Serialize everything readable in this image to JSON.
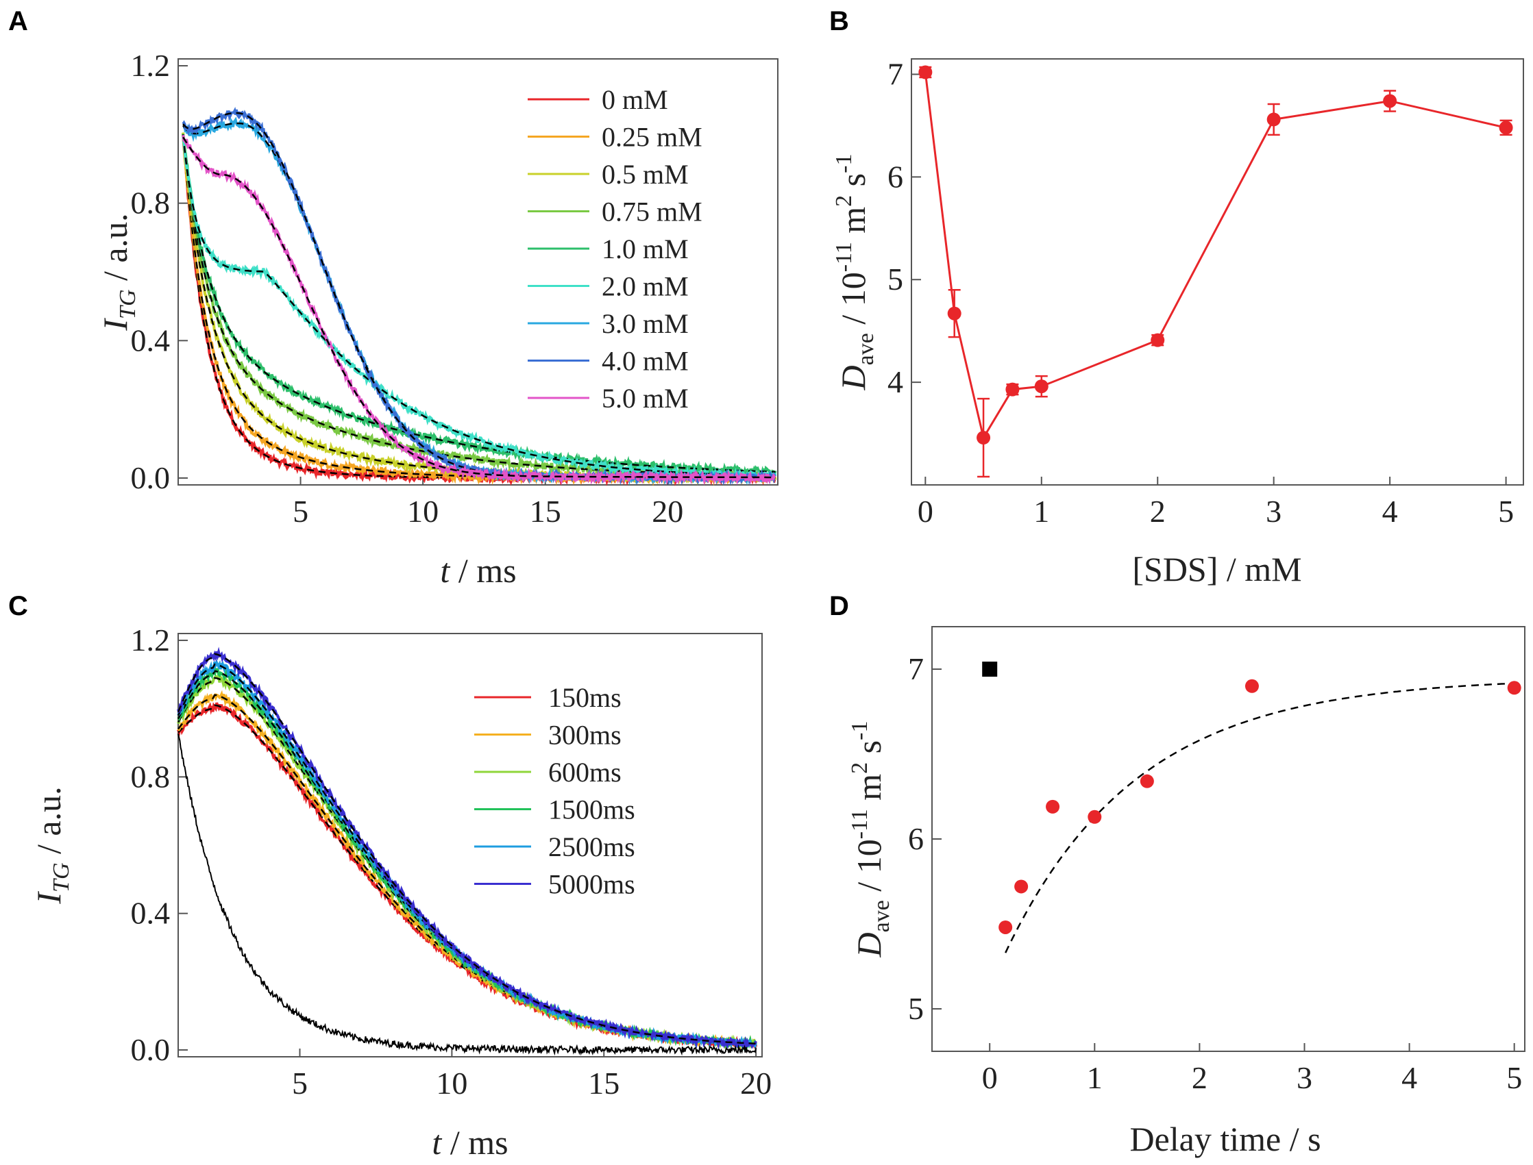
{
  "panels": {
    "A": {
      "label": "A"
    },
    "B": {
      "label": "B"
    },
    "C": {
      "label": "C"
    },
    "D": {
      "label": "D"
    }
  },
  "chart_data": [
    {
      "id": "A",
      "type": "line",
      "xlabel_italic": "t",
      "xlabel_rest": " / ms",
      "ylabel_main": "I",
      "ylabel_sub": "TG",
      "ylabel_rest": " / a.u.",
      "xlim": [
        0,
        24.5
      ],
      "ylim": [
        -0.02,
        1.22
      ],
      "xticks": [
        5,
        10,
        15,
        20
      ],
      "yticks": [
        0.0,
        0.4,
        0.8,
        1.2
      ],
      "ytick_labels": [
        "0.0",
        "0.4",
        "0.8",
        "1.2"
      ],
      "series": [
        {
          "name": "0 mM",
          "color": "#e8262a",
          "t0": 0.2,
          "y0": 1.0,
          "fast_frac": 0.78,
          "tau_fast": 0.9,
          "tau_slow": 2.2,
          "bump_amp": 0.0,
          "bump_center": 3.0,
          "bump_width": 2.0
        },
        {
          "name": "0.25 mM",
          "color": "#f5a623",
          "t0": 0.2,
          "y0": 1.0,
          "fast_frac": 0.72,
          "tau_fast": 0.9,
          "tau_slow": 3.0,
          "bump_amp": 0.0,
          "bump_center": 3.0,
          "bump_width": 2.0
        },
        {
          "name": "0.5 mM",
          "color": "#c9d12a",
          "t0": 0.2,
          "y0": 1.0,
          "fast_frac": 0.66,
          "tau_fast": 1.0,
          "tau_slow": 4.2,
          "bump_amp": 0.0,
          "bump_center": 3.0,
          "bump_width": 2.0
        },
        {
          "name": "0.75 mM",
          "color": "#7ac943",
          "t0": 0.2,
          "y0": 1.0,
          "fast_frac": 0.6,
          "tau_fast": 1.0,
          "tau_slow": 6.0,
          "bump_amp": 0.0,
          "bump_center": 3.0,
          "bump_width": 2.0
        },
        {
          "name": "1.0 mM",
          "color": "#2dbf6b",
          "t0": 0.2,
          "y0": 1.0,
          "fast_frac": 0.55,
          "tau_fast": 1.0,
          "tau_slow": 7.5,
          "bump_amp": 0.0,
          "bump_center": 3.0,
          "bump_width": 2.0
        },
        {
          "name": "2.0 mM",
          "color": "#3fe0c8",
          "t0": 0.2,
          "y0": 1.0,
          "fast_frac": 0.0,
          "tau_fast": 1.0,
          "tau_slow": 7.0,
          "bump_amp": 0.0,
          "bump_center": 3.0,
          "bump_width": 2.0,
          "custom": "twostep"
        },
        {
          "name": "3.0 mM",
          "color": "#29a8e0",
          "t0": 0.2,
          "y0": 0.93,
          "fast_frac": 0.0,
          "tau_fast": 1.0,
          "tau_slow": 5.0,
          "bump_amp": 1.02,
          "bump_center": 2.5,
          "bump_width": 2.2,
          "custom": "bump"
        },
        {
          "name": "4.0 mM",
          "color": "#3b6fd4",
          "t0": 0.2,
          "y0": 0.93,
          "fast_frac": 0.0,
          "tau_fast": 1.0,
          "tau_slow": 5.0,
          "bump_amp": 1.05,
          "bump_center": 2.4,
          "bump_width": 2.2,
          "custom": "bump"
        },
        {
          "name": "5.0 mM",
          "color": "#e354c8",
          "t0": 0.2,
          "y0": 1.0,
          "fast_frac": 0.0,
          "tau_fast": 1.0,
          "tau_slow": 4.5,
          "bump_amp": 0.87,
          "bump_center": 1.8,
          "bump_width": 2.3,
          "custom": "bump"
        }
      ],
      "fit_style": "black dashed"
    },
    {
      "id": "B",
      "type": "line",
      "xlabel": "[SDS] / mM",
      "ylabel_main": "D",
      "ylabel_sub": "ave",
      "ylabel_rest": " / 10",
      "ylabel_exp1": "-11",
      "ylabel_unit1": " m",
      "ylabel_exp2": "2",
      "ylabel_unit2": " s",
      "ylabel_exp3": "-1",
      "xlim": [
        -0.12,
        5.15
      ],
      "ylim": [
        3.0,
        7.15
      ],
      "xticks": [
        0,
        1,
        2,
        3,
        4,
        5
      ],
      "yticks": [
        4,
        5,
        6,
        7
      ],
      "color": "#e8262a",
      "x": [
        0,
        0.25,
        0.5,
        0.75,
        1,
        2,
        3,
        4,
        5
      ],
      "y": [
        7.02,
        4.67,
        3.46,
        3.93,
        3.96,
        4.41,
        6.56,
        6.74,
        6.48
      ],
      "err": [
        0.05,
        0.23,
        0.38,
        0.05,
        0.1,
        0.05,
        0.15,
        0.1,
        0.07
      ]
    },
    {
      "id": "C",
      "type": "line",
      "xlabel_italic": "t",
      "xlabel_rest": " / ms",
      "ylabel_main": "I",
      "ylabel_sub": "TG",
      "ylabel_rest": " / a.u.",
      "xlim": [
        1.0,
        20.2
      ],
      "ylim": [
        -0.02,
        1.22
      ],
      "xticks": [
        5,
        10,
        15,
        20
      ],
      "yticks": [
        0.0,
        0.4,
        0.8,
        1.2
      ],
      "ytick_labels": [
        "0.0",
        "0.4",
        "0.8",
        "1.2"
      ],
      "series": [
        {
          "name": "150ms",
          "color": "#e8262a",
          "y0": 0.93,
          "peak": 1.0
        },
        {
          "name": "300ms",
          "color": "#f5b021",
          "y0": 0.94,
          "peak": 1.03
        },
        {
          "name": "600ms",
          "color": "#8fd63a",
          "y0": 0.96,
          "peak": 1.08
        },
        {
          "name": "1500ms",
          "color": "#22c25a",
          "y0": 0.97,
          "peak": 1.1
        },
        {
          "name": "2500ms",
          "color": "#1e9de0",
          "y0": 0.98,
          "peak": 1.12
        },
        {
          "name": "5000ms",
          "color": "#3a2fd0",
          "y0": 0.99,
          "peak": 1.15
        }
      ],
      "reference_trace": {
        "color": "#000000",
        "y0": 0.93,
        "tau": 1.8
      }
    },
    {
      "id": "D",
      "type": "scatter",
      "xlabel": "Delay time / s",
      "ylabel_main": "D",
      "ylabel_sub": "ave",
      "ylabel_rest": " / 10",
      "ylabel_exp1": "-11",
      "ylabel_unit1": " m",
      "ylabel_exp2": "2",
      "ylabel_unit2": " s",
      "ylabel_exp3": "-1",
      "xlim": [
        -0.55,
        5.1
      ],
      "ylim": [
        4.75,
        7.25
      ],
      "xticks": [
        0,
        1,
        2,
        3,
        4,
        5
      ],
      "yticks": [
        5,
        6,
        7
      ],
      "reference_point": {
        "x": 0,
        "y": 7.0,
        "color": "#000000",
        "marker": "square"
      },
      "points": {
        "color": "#e8262a",
        "x": [
          0.15,
          0.3,
          0.6,
          1.0,
          1.5,
          2.5,
          5.0
        ],
        "y": [
          5.48,
          5.72,
          6.19,
          6.13,
          6.34,
          6.9,
          6.89
        ]
      },
      "fit": {
        "style": "black dashed",
        "x_start": 0.15,
        "x_end": 5.0,
        "A": 6.95,
        "B": 1.62,
        "tau": 1.25
      }
    }
  ]
}
